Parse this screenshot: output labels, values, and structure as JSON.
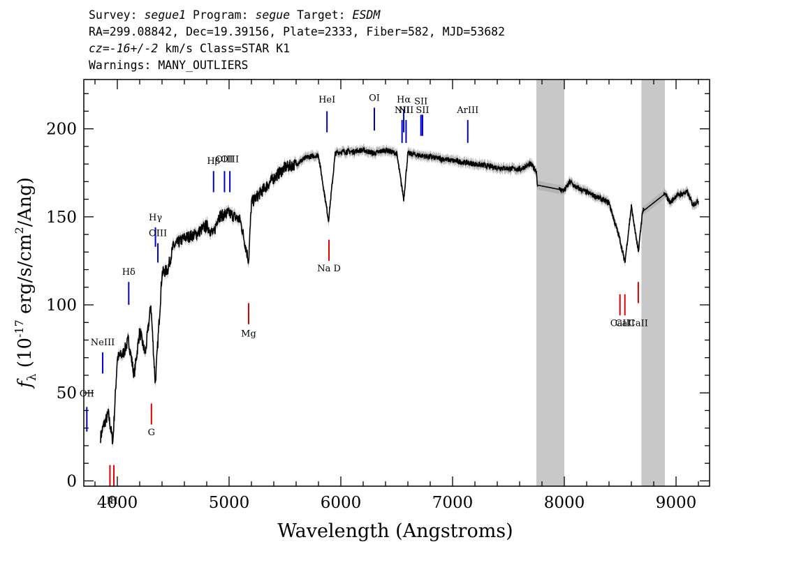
{
  "header": {
    "survey_label": "Survey:",
    "survey_value": "segue1",
    "program_label": "Program:",
    "program_value": "segue",
    "target_label": "Target:",
    "target_value": "ESDM",
    "line2": "RA=299.08842, Dec=19.39156, Plate=2333, Fiber=582, MJD=53682",
    "cz_label": "cz",
    "cz_value": "=-16+/-2",
    "cz_rest": " km/s Class=STAR K1",
    "warnings": "Warnings: MANY_OUTLIERS"
  },
  "chart_data": {
    "type": "line",
    "xlabel": "Wavelength (Angstroms)",
    "ylabel": "f_λ (10^-17 erg/s/cm^2/Ang)",
    "xlim": [
      3700,
      9300
    ],
    "ylim": [
      -3,
      228
    ],
    "x_ticks": [
      4000,
      5000,
      6000,
      7000,
      8000,
      9000
    ],
    "y_ticks": [
      0,
      50,
      100,
      150,
      200
    ],
    "series": [
      {
        "x": [
          3850,
          3880,
          3920,
          3960,
          4000,
          4050,
          4100,
          4150,
          4200,
          4250,
          4300,
          4340,
          4400,
          4450,
          4500,
          4600,
          4700,
          4800,
          4861,
          4900,
          5000,
          5100,
          5175,
          5200,
          5300,
          5400,
          5500,
          5600,
          5700,
          5800,
          5890,
          5950,
          6000,
          6100,
          6200,
          6300,
          6400,
          6500,
          6563,
          6600,
          6700,
          6800,
          7000,
          7200,
          7400,
          7600,
          7700,
          7750,
          7760,
          8000,
          8050,
          8100,
          8200,
          8300,
          8400,
          8498,
          8542,
          8600,
          8662,
          8700,
          8900,
          8950,
          9000,
          9100,
          9150,
          9200
        ],
        "y": [
          25,
          32,
          38,
          22,
          70,
          72,
          80,
          60,
          85,
          72,
          100,
          55,
          118,
          120,
          133,
          138,
          140,
          145,
          140,
          150,
          152,
          148,
          125,
          158,
          165,
          172,
          178,
          180,
          184,
          185,
          148,
          186,
          187,
          187,
          188,
          186,
          188,
          186,
          160,
          186,
          185,
          184,
          182,
          180,
          178,
          177,
          180,
          176,
          168,
          165,
          170,
          167,
          164,
          161,
          158,
          137,
          124,
          156,
          130,
          153,
          163,
          158,
          162,
          164,
          157,
          159
        ]
      }
    ],
    "masked_regions": [
      [
        7750,
        8000
      ],
      [
        8690,
        8900
      ]
    ],
    "emission_lines": [
      {
        "label": "OII",
        "x": 3727,
        "label_y": 48,
        "top": 42,
        "bottom": 28
      },
      {
        "label": "NeIII",
        "x": 3869,
        "label_y": 77,
        "top": 73,
        "bottom": 61
      },
      {
        "label": "Hδ",
        "x": 4102,
        "label_y": 117,
        "top": 113,
        "bottom": 100
      },
      {
        "label": "Hγ",
        "x": 4341,
        "label_y": 148,
        "top": 144,
        "bottom": 133
      },
      {
        "label": "OIII",
        "x": 4363,
        "label_y": 139,
        "top": 135,
        "bottom": 124
      },
      {
        "label": "Hβ",
        "x": 4861,
        "label_y": 180,
        "top": 176,
        "bottom": 164
      },
      {
        "label": "OIII",
        "x": 4959,
        "label_y": 181,
        "top": 176,
        "bottom": 164
      },
      {
        "label": "OIII",
        "x": 5007,
        "label_y": 181,
        "top": 176,
        "bottom": 164
      },
      {
        "label": "HeI",
        "x": 5876,
        "label_y": 215,
        "top": 210,
        "bottom": 198
      },
      {
        "label": "OI",
        "x": 6300,
        "label_y": 216,
        "top": 212,
        "bottom": 199
      },
      {
        "label": "NII",
        "x": 6548,
        "label_y": 209,
        "top": 205,
        "bottom": 192
      },
      {
        "label": "Hα",
        "x": 6563,
        "label_y": 215,
        "top": 211,
        "bottom": 198
      },
      {
        "label": "NII",
        "x": 6584,
        "label_y": 209,
        "top": 205,
        "bottom": 192
      },
      {
        "label": "SII",
        "x": 6717,
        "label_y": 214,
        "top": 208,
        "bottom": 196
      },
      {
        "label": "SII",
        "x": 6731,
        "label_y": 209,
        "top": 208,
        "bottom": 196
      },
      {
        "label": "ArIII",
        "x": 7136,
        "label_y": 209,
        "top": 205,
        "bottom": 192
      }
    ],
    "absorption_lines": [
      {
        "label": "K",
        "x": 3934,
        "label_y": -13,
        "top": 9,
        "bottom": -3
      },
      {
        "label": "H",
        "x": 3969,
        "label_y": -13,
        "top": 9,
        "bottom": -3
      },
      {
        "label": "G",
        "x": 4305,
        "label_y": 26,
        "top": 44,
        "bottom": 32
      },
      {
        "label": "Mg",
        "x": 5175,
        "label_y": 82,
        "top": 101,
        "bottom": 89
      },
      {
        "label": "Na D",
        "x": 5894,
        "label_y": 119,
        "top": 137,
        "bottom": 125
      },
      {
        "label": "CaII",
        "x": 8498,
        "label_y": 88,
        "top": 106,
        "bottom": 94
      },
      {
        "label": "CaII",
        "x": 8542,
        "label_y": 88,
        "top": 106,
        "bottom": 94
      },
      {
        "label": "CaII",
        "x": 8662,
        "label_y": 88,
        "top": 113,
        "bottom": 101
      }
    ],
    "colors": {
      "emission": "#0000cc",
      "absorption": "#dd0000",
      "spectrum": "#000000",
      "mask": "#c8c8c8",
      "error": "#b4b4b4"
    }
  }
}
